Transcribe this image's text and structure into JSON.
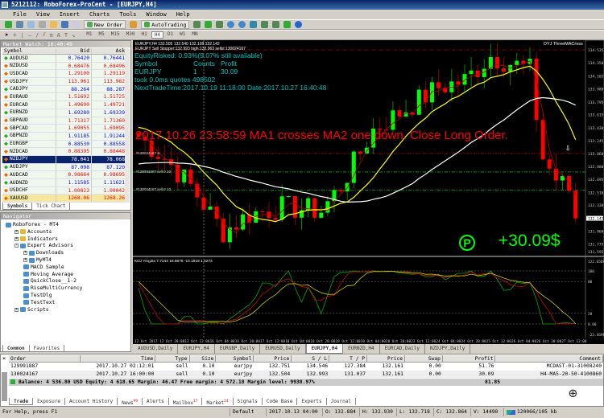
{
  "window": {
    "title": "5212112: RoboForex-ProCent - [EURJPY,H4]"
  },
  "menu": [
    "File",
    "View",
    "Insert",
    "Charts",
    "Tools",
    "Window",
    "Help"
  ],
  "toolbar": {
    "new_order": "New Order",
    "autotrading": "AutoTrading",
    "timeframes": [
      "M1",
      "M5",
      "M15",
      "M30",
      "H1",
      "H4",
      "D1",
      "W1",
      "MN"
    ],
    "active_timeframe": "H4"
  },
  "market_watch": {
    "title": "Market Watch: 16:40:49",
    "columns": [
      "Symbol",
      "Bid",
      "Ask"
    ],
    "rows": [
      {
        "symbol": "AUDUSD",
        "bid": "0.76420",
        "ask": "0.76441",
        "dir": "up",
        "color": "#0000ff"
      },
      {
        "symbol": "NZDUSD",
        "bid": "0.68476",
        "ask": "0.68496",
        "dir": "down",
        "color": "#ff0000"
      },
      {
        "symbol": "USDCAD",
        "bid": "1.29100",
        "ask": "1.29119",
        "dir": "down",
        "color": "#ff0000"
      },
      {
        "symbol": "USDJPY",
        "bid": "113.961",
        "ask": "113.982",
        "dir": "down",
        "color": "#ff0000"
      },
      {
        "symbol": "CADJPY",
        "bid": "88.264",
        "ask": "88.287",
        "dir": "up",
        "color": "#0000ff"
      },
      {
        "symbol": "EURAUD",
        "bid": "1.51692",
        "ask": "1.51725",
        "dir": "down",
        "color": "#ff0000"
      },
      {
        "symbol": "EURCAD",
        "bid": "1.49690",
        "ask": "1.49721",
        "dir": "down",
        "color": "#ff0000"
      },
      {
        "symbol": "EURNZD",
        "bid": "1.69280",
        "ask": "1.69339",
        "dir": "up",
        "color": "#0000ff"
      },
      {
        "symbol": "GBPAUD",
        "bid": "1.71317",
        "ask": "1.71360",
        "dir": "down",
        "color": "#ff0000"
      },
      {
        "symbol": "GBPCAD",
        "bid": "1.69055",
        "ask": "1.69095",
        "dir": "down",
        "color": "#ff0000"
      },
      {
        "symbol": "GBPNZD",
        "bid": "1.91185",
        "ask": "1.91244",
        "dir": "up",
        "color": "#0000ff"
      },
      {
        "symbol": "EURGBP",
        "bid": "0.88530",
        "ask": "0.88558",
        "dir": "up",
        "color": "#0000ff"
      },
      {
        "symbol": "NZDCAD",
        "bid": "0.88395",
        "ask": "0.88448",
        "dir": "down",
        "color": "#ff0000"
      },
      {
        "symbol": "NZDJPY",
        "bid": "78.041",
        "ask": "78.068",
        "dir": "down",
        "color": "#ffffff",
        "selected": true
      },
      {
        "symbol": "AUDJPY",
        "bid": "87.098",
        "ask": "87.120",
        "dir": "up",
        "color": "#0000ff"
      },
      {
        "symbol": "AUDCAD",
        "bid": "0.98664",
        "ask": "0.98695",
        "dir": "down",
        "color": "#ff0000"
      },
      {
        "symbol": "AUDNZD",
        "bid": "1.11585",
        "ask": "1.11621",
        "dir": "up",
        "color": "#0000ff"
      },
      {
        "symbol": "USDCHF",
        "bid": "1.00022",
        "ask": "1.00042",
        "dir": "down",
        "color": "#ff0000"
      },
      {
        "symbol": "XAUUSD",
        "bid": "1268.06",
        "ask": "1268.26",
        "dir": "down",
        "color": "#ff0000",
        "highlight": true
      }
    ],
    "tabs": [
      "Symbols",
      "Tick Chart"
    ]
  },
  "navigator": {
    "title": "Navigator",
    "items": [
      {
        "label": "RoboForex - MT4",
        "level": 0
      },
      {
        "label": "Accounts",
        "level": 1,
        "pm": "+"
      },
      {
        "label": "Indicators",
        "level": 1,
        "pm": "+"
      },
      {
        "label": "Expert Advisors",
        "level": 1,
        "pm": "-"
      },
      {
        "label": "Downloads",
        "level": 2,
        "pm": "+"
      },
      {
        "label": "MyMT4",
        "level": 2,
        "pm": "+"
      },
      {
        "label": "MACD Sample",
        "level": 2
      },
      {
        "label": "Moving Average",
        "level": 2
      },
      {
        "label": "QuickClose__1-2",
        "level": 2
      },
      {
        "label": "RiseMultiCurrency",
        "level": 2
      },
      {
        "label": "TestDlg",
        "level": 2
      },
      {
        "label": "TestText",
        "level": 2
      },
      {
        "label": "Scripts",
        "level": 1,
        "pm": "+"
      }
    ],
    "tabs": [
      "Common",
      "Favorites"
    ]
  },
  "chart": {
    "ohlc_line": "EURJPY,H4 132.505 132.540 132.108 132.142",
    "stopper_line": "EURJPY Sell Stopper:132.993 high:132.963 sellsl:130024167",
    "ea_name": "DYJ ThreeMACross",
    "info": {
      "equity": "EquityRisked: 0.93%(9.07% still available)",
      "col_symbol": "Symbol",
      "col_counts": "Counts",
      "col_profit": "Profit",
      "symbol": "EURJPY",
      "counts": "1",
      "profit": "30.09",
      "took": "took 0.0ms quotes 498502",
      "next": "NextTradeTime:2017.10.19 11:18:00 Date:2017.10.27 16:40:48"
    },
    "alert": "2017.10.26 23:58:59 MA1 crosses MA2 one down. Close Long Order.",
    "order_labels": [
      "#130024167 sl",
      "#129991887 sell 0.10",
      "#130024167 sell 0.10"
    ],
    "profit_badge": "P",
    "profit_text": "+30.09$",
    "price_labels": [
      "134.535",
      "134.350",
      "134.165",
      "133.980",
      "133.795",
      "133.615",
      "133.430",
      "133.245",
      "133.060",
      "132.880",
      "132.695",
      "132.510",
      "132.330",
      "131.960",
      "131.775",
      "131.595"
    ],
    "current_price": "132.142",
    "indicator": {
      "label": "KDJ YingJia 7.7144 18.6676 -14.1919 1.4274",
      "scale": [
        "122.6589",
        "100",
        "80",
        "20",
        "0.00",
        "-23.4696"
      ]
    },
    "time_labels": [
      "12 Oct 2017",
      "12 Oct 20:00",
      "13 Oct 12:00",
      "16 Oct 04:00",
      "16 Oct 20:00",
      "17 Oct 12:00",
      "18 Oct 04:00",
      "18 Oct 20:00",
      "19 Oct 12:00",
      "20 Oct 04:00",
      "20 Oct 20:00",
      "23 Oct 12:00",
      "24 Oct 04:00",
      "24 Oct 20:00",
      "25 Oct 12:00",
      "26 Oct 04:00",
      "26 Oct 20:00",
      "27 Oct 12:00"
    ],
    "colors": {
      "bull": "#00ff00",
      "bear": "#ff0000",
      "ma_fast": "#b00000",
      "ma_mid": "#ffff00",
      "ma_slow": "#ffffff",
      "info": "#00c0c0"
    }
  },
  "chart_tabs": {
    "items": [
      "AUDUSD,Daily",
      "EURJPY,H4",
      "EURGBP,Daily",
      "EURUSD,Daily",
      "EURJPY,H4",
      "EURNZD,H4",
      "EURCAD,Daily",
      "NZDJPY,Daily"
    ],
    "active": 4
  },
  "terminal": {
    "columns": [
      "Order",
      "Time",
      "Type",
      "Size",
      "Symbol",
      "Price",
      "S / L",
      "T / P",
      "Price",
      "Swap",
      "Profit",
      "Comment"
    ],
    "rows": [
      [
        "129991887",
        "2017.10.27 02:12:01",
        "sell",
        "0.10",
        "eurjpy",
        "132.751",
        "134.546",
        "127.384",
        "132.161",
        "0.00",
        "51.76",
        "MCDAST-01-31008240"
      ],
      [
        "130024167",
        "2017.10.27 16:00:00",
        "sell",
        "0.10",
        "eurjpy",
        "132.504",
        "132.993",
        "131.037",
        "132.161",
        "0.00",
        "30.09",
        "H4-MA5-20-50-4100860"
      ]
    ],
    "balance": "Balance: 4 536.80 USD  Equity: 4 618.65  Margin: 46.47  Free margin: 4 572.18  Margin level: 9938.97%",
    "total_profit": "81.85",
    "tabs": [
      {
        "label": "Trade"
      },
      {
        "label": "Exposure"
      },
      {
        "label": "Account History"
      },
      {
        "label": "News",
        "badge": "99"
      },
      {
        "label": "Alerts"
      },
      {
        "label": "Mailbox",
        "badge": "17"
      },
      {
        "label": "Market",
        "badge": "24"
      },
      {
        "label": "Signals"
      },
      {
        "label": "Code Base"
      },
      {
        "label": "Experts"
      },
      {
        "label": "Journal"
      }
    ]
  },
  "status": {
    "help": "For Help, press F1",
    "profile": "Default",
    "time": "2017.10.13 04:00",
    "open": "O: 132.884",
    "high": "H: 132.930",
    "low": "L: 132.718",
    "close": "C: 132.864",
    "volume": "V: 14490",
    "traffic": "120066/105 kb"
  }
}
